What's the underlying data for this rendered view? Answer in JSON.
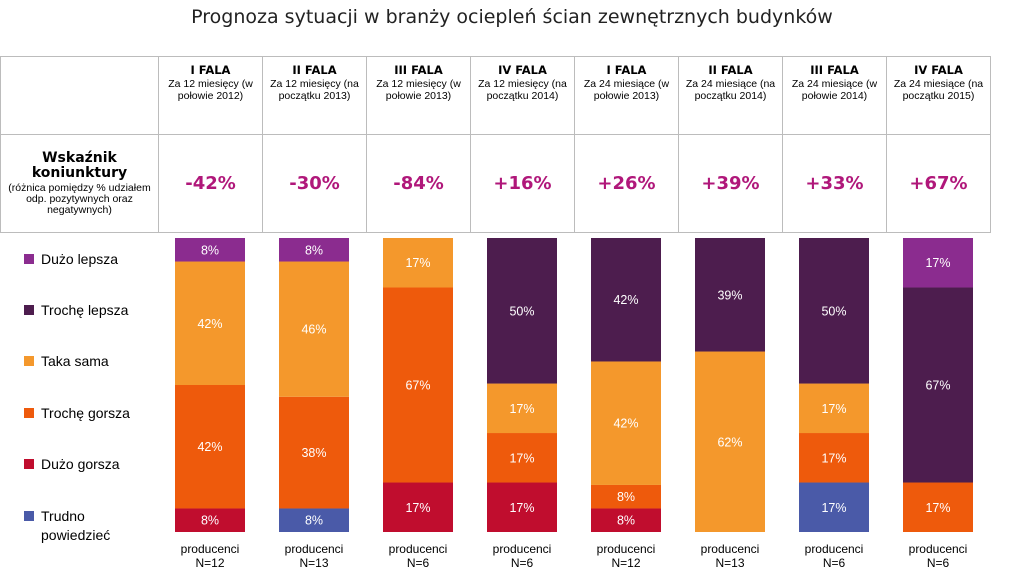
{
  "title": "Prognoza sytuacji w branży ociepleń ścian zewnętrznych budynków",
  "indicator": {
    "title": "Wskaźnik koniunktury",
    "subtitle": "(różnica pomiędzy % udziałem odp. pozytywnych oraz negatywnych)"
  },
  "chart_data": {
    "type": "bar",
    "stacked": true,
    "normalized_percent": true,
    "categories": [
      {
        "wave": "I FALA",
        "period": "Za 12 miesięcy (w połowie 2012)",
        "indicator": "-42%",
        "xlabel": "producenci",
        "n": "N=12"
      },
      {
        "wave": "II FALA",
        "period": "Za 12 miesięcy (na początku 2013)",
        "indicator": "-30%",
        "xlabel": "producenci",
        "n": "N=13"
      },
      {
        "wave": "III FALA",
        "period": "Za 12 miesięcy (w połowie 2013)",
        "indicator": "-84%",
        "xlabel": "producenci",
        "n": "N=6"
      },
      {
        "wave": "IV FALA",
        "period": "Za 12 miesięcy (na początku 2014)",
        "indicator": "+16%",
        "xlabel": "producenci",
        "n": "N=6"
      },
      {
        "wave": "I FALA",
        "period": "Za 24 miesiące (w połowie 2013)",
        "indicator": "+26%",
        "xlabel": "producenci",
        "n": "N=12"
      },
      {
        "wave": "II FALA",
        "period": "Za 24 miesiące (na początku 2014)",
        "indicator": "+39%",
        "xlabel": "producenci",
        "n": "N=13"
      },
      {
        "wave": "III FALA",
        "period": "Za 24 miesiące (w połowie 2014)",
        "indicator": "+33%",
        "xlabel": "producenci",
        "n": "N=6"
      },
      {
        "wave": "IV FALA",
        "period": "Za 24 miesiące (na początku 2015)",
        "indicator": "+67%",
        "xlabel": "producenci",
        "n": "N=6"
      }
    ],
    "series": [
      {
        "name": "Trudno powiedzieć",
        "color": "#4a5aa8",
        "values": [
          0,
          8,
          0,
          0,
          0,
          0,
          17,
          0
        ]
      },
      {
        "name": "Dużo gorsza",
        "color": "#c00d2e",
        "values": [
          8,
          0,
          17,
          17,
          8,
          0,
          0,
          0
        ]
      },
      {
        "name": "Trochę gorsza",
        "color": "#ee5a0c",
        "values": [
          42,
          38,
          67,
          17,
          8,
          0,
          17,
          17
        ]
      },
      {
        "name": "Taka sama",
        "color": "#f4982c",
        "values": [
          42,
          46,
          17,
          17,
          42,
          62,
          17,
          0
        ]
      },
      {
        "name": "Trochę lepsza",
        "color": "#4d1d4e",
        "values": [
          0,
          0,
          0,
          50,
          42,
          39,
          50,
          67
        ]
      },
      {
        "name": "Dużo lepsza",
        "color": "#8b2c8f",
        "values": [
          8,
          8,
          0,
          0,
          0,
          0,
          0,
          17
        ]
      }
    ],
    "legend_order": [
      "Dużo lepsza",
      "Trochę lepsza",
      "Taka sama",
      "Trochę gorsza",
      "Dużo gorsza",
      "Trudno powiedzieć"
    ],
    "legend_position": "left",
    "grid": false
  }
}
